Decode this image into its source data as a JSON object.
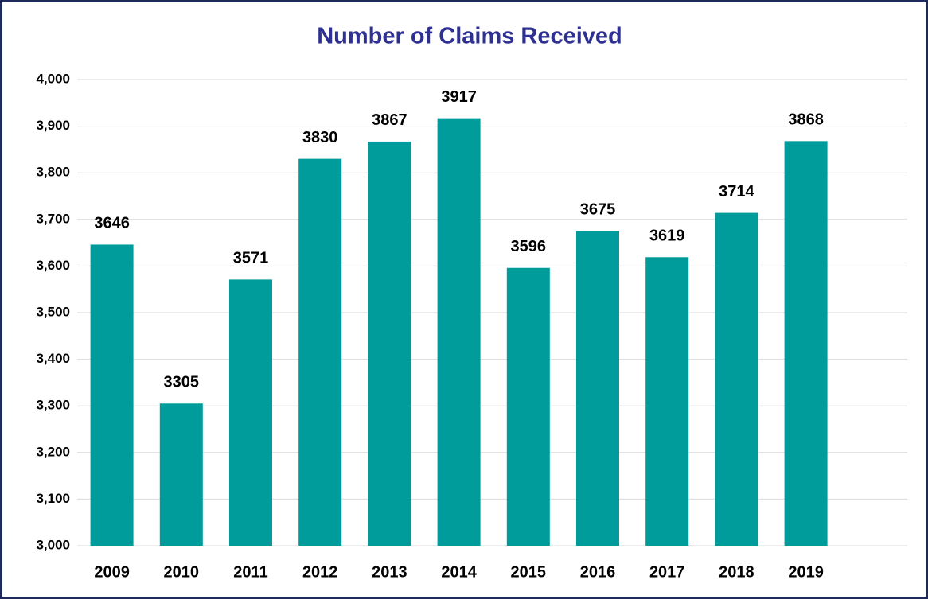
{
  "chart_data": {
    "type": "bar",
    "title": "Number of Claims Received",
    "categories": [
      "2009",
      "2010",
      "2011",
      "2012",
      "2013",
      "2014",
      "2015",
      "2016",
      "2017",
      "2018",
      "2019"
    ],
    "values": [
      3646,
      3305,
      3571,
      3830,
      3867,
      3917,
      3596,
      3675,
      3619,
      3714,
      3868
    ],
    "color": "#009b9b",
    "ylim": [
      3000,
      4000
    ],
    "yticks": [
      {
        "value": 3000,
        "label": "3,000"
      },
      {
        "value": 3100,
        "label": "3,100"
      },
      {
        "value": 3200,
        "label": "3,200"
      },
      {
        "value": 3300,
        "label": "3,300"
      },
      {
        "value": 3400,
        "label": "3,400"
      },
      {
        "value": 3500,
        "label": "3,500"
      },
      {
        "value": 3600,
        "label": "3,600"
      },
      {
        "value": 3700,
        "label": "3,700"
      },
      {
        "value": 3800,
        "label": "3,800"
      },
      {
        "value": 3900,
        "label": "3,900"
      },
      {
        "value": 4000,
        "label": "4,000"
      }
    ],
    "grid": true
  }
}
